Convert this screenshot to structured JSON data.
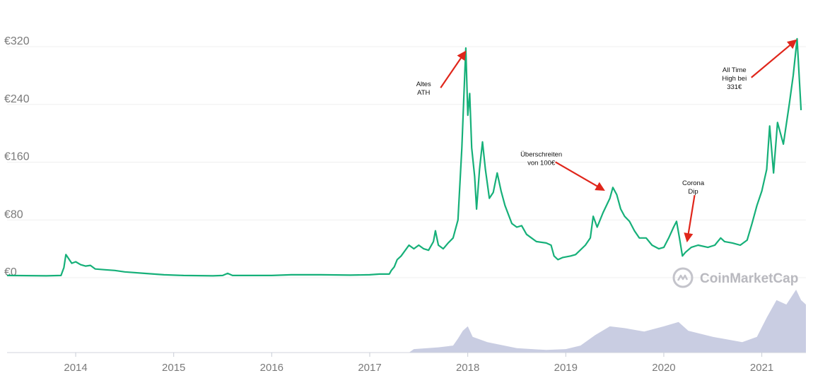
{
  "chart_data": {
    "type": "line",
    "title": "",
    "xlabel": "",
    "ylabel": "",
    "currency_prefix": "€",
    "ylim": [
      0,
      330
    ],
    "xlim": [
      2013.3,
      2021.45
    ],
    "grid": true,
    "y_ticks": [
      {
        "value": 0,
        "label": "€0"
      },
      {
        "value": 80,
        "label": "€80"
      },
      {
        "value": 160,
        "label": "€160"
      },
      {
        "value": 240,
        "label": "€240"
      },
      {
        "value": 320,
        "label": "€320"
      }
    ],
    "x_ticks": [
      {
        "value": 2014,
        "label": "2014"
      },
      {
        "value": 2015,
        "label": "2015"
      },
      {
        "value": 2016,
        "label": "2016"
      },
      {
        "value": 2017,
        "label": "2017"
      },
      {
        "value": 2018,
        "label": "2018"
      },
      {
        "value": 2019,
        "label": "2019"
      },
      {
        "value": 2020,
        "label": "2020"
      },
      {
        "value": 2021,
        "label": "2021"
      }
    ],
    "series": [
      {
        "color": "#16b079",
        "points": [
          [
            2013.3,
            3
          ],
          [
            2013.7,
            2.5
          ],
          [
            2013.85,
            3
          ],
          [
            2013.88,
            14
          ],
          [
            2013.9,
            32
          ],
          [
            2013.93,
            26
          ],
          [
            2013.96,
            20
          ],
          [
            2014.0,
            22
          ],
          [
            2014.05,
            18
          ],
          [
            2014.1,
            16
          ],
          [
            2014.15,
            17
          ],
          [
            2014.2,
            12
          ],
          [
            2014.3,
            11
          ],
          [
            2014.4,
            10
          ],
          [
            2014.5,
            8
          ],
          [
            2014.7,
            6
          ],
          [
            2014.9,
            4
          ],
          [
            2015.1,
            3
          ],
          [
            2015.4,
            2.5
          ],
          [
            2015.5,
            3
          ],
          [
            2015.55,
            6
          ],
          [
            2015.6,
            3
          ],
          [
            2015.8,
            3
          ],
          [
            2016.0,
            3
          ],
          [
            2016.2,
            4
          ],
          [
            2016.5,
            4
          ],
          [
            2016.8,
            3.5
          ],
          [
            2017.0,
            4
          ],
          [
            2017.1,
            5
          ],
          [
            2017.2,
            5
          ],
          [
            2017.22,
            10
          ],
          [
            2017.25,
            15
          ],
          [
            2017.28,
            25
          ],
          [
            2017.32,
            30
          ],
          [
            2017.4,
            45
          ],
          [
            2017.45,
            40
          ],
          [
            2017.5,
            45
          ],
          [
            2017.55,
            40
          ],
          [
            2017.6,
            38
          ],
          [
            2017.65,
            50
          ],
          [
            2017.67,
            65
          ],
          [
            2017.7,
            45
          ],
          [
            2017.75,
            40
          ],
          [
            2017.8,
            48
          ],
          [
            2017.85,
            55
          ],
          [
            2017.9,
            80
          ],
          [
            2017.94,
            180
          ],
          [
            2017.96,
            250
          ],
          [
            2017.98,
            318
          ],
          [
            2018.0,
            225
          ],
          [
            2018.02,
            255
          ],
          [
            2018.04,
            180
          ],
          [
            2018.07,
            140
          ],
          [
            2018.09,
            95
          ],
          [
            2018.12,
            150
          ],
          [
            2018.15,
            188
          ],
          [
            2018.18,
            150
          ],
          [
            2018.22,
            110
          ],
          [
            2018.26,
            118
          ],
          [
            2018.3,
            145
          ],
          [
            2018.34,
            120
          ],
          [
            2018.38,
            100
          ],
          [
            2018.45,
            75
          ],
          [
            2018.5,
            70
          ],
          [
            2018.55,
            72
          ],
          [
            2018.6,
            60
          ],
          [
            2018.65,
            55
          ],
          [
            2018.7,
            50
          ],
          [
            2018.8,
            48
          ],
          [
            2018.85,
            45
          ],
          [
            2018.88,
            30
          ],
          [
            2018.92,
            25
          ],
          [
            2018.97,
            28
          ],
          [
            2019.05,
            30
          ],
          [
            2019.1,
            32
          ],
          [
            2019.2,
            45
          ],
          [
            2019.25,
            55
          ],
          [
            2019.28,
            85
          ],
          [
            2019.32,
            70
          ],
          [
            2019.38,
            90
          ],
          [
            2019.45,
            110
          ],
          [
            2019.48,
            125
          ],
          [
            2019.52,
            115
          ],
          [
            2019.56,
            95
          ],
          [
            2019.6,
            85
          ],
          [
            2019.65,
            78
          ],
          [
            2019.7,
            65
          ],
          [
            2019.75,
            55
          ],
          [
            2019.82,
            55
          ],
          [
            2019.88,
            45
          ],
          [
            2019.95,
            40
          ],
          [
            2020.0,
            42
          ],
          [
            2020.05,
            55
          ],
          [
            2020.1,
            70
          ],
          [
            2020.13,
            78
          ],
          [
            2020.16,
            55
          ],
          [
            2020.19,
            30
          ],
          [
            2020.22,
            35
          ],
          [
            2020.28,
            42
          ],
          [
            2020.35,
            45
          ],
          [
            2020.45,
            42
          ],
          [
            2020.52,
            45
          ],
          [
            2020.58,
            55
          ],
          [
            2020.62,
            50
          ],
          [
            2020.7,
            48
          ],
          [
            2020.78,
            45
          ],
          [
            2020.85,
            52
          ],
          [
            2020.9,
            75
          ],
          [
            2020.95,
            100
          ],
          [
            2021.0,
            120
          ],
          [
            2021.05,
            150
          ],
          [
            2021.08,
            210
          ],
          [
            2021.12,
            145
          ],
          [
            2021.16,
            215
          ],
          [
            2021.22,
            185
          ],
          [
            2021.28,
            240
          ],
          [
            2021.32,
            280
          ],
          [
            2021.36,
            331
          ],
          [
            2021.4,
            232
          ]
        ]
      }
    ],
    "volume": {
      "color": "#c9cde2",
      "points": [
        [
          2013.3,
          0
        ],
        [
          2017.4,
          0
        ],
        [
          2017.45,
          4
        ],
        [
          2017.7,
          6
        ],
        [
          2017.85,
          8
        ],
        [
          2017.9,
          16
        ],
        [
          2017.95,
          25
        ],
        [
          2018.0,
          30
        ],
        [
          2018.05,
          18
        ],
        [
          2018.2,
          12
        ],
        [
          2018.5,
          5
        ],
        [
          2018.8,
          3
        ],
        [
          2019.0,
          4
        ],
        [
          2019.15,
          8
        ],
        [
          2019.3,
          20
        ],
        [
          2019.45,
          30
        ],
        [
          2019.6,
          28
        ],
        [
          2019.8,
          24
        ],
        [
          2020.0,
          30
        ],
        [
          2020.15,
          35
        ],
        [
          2020.25,
          25
        ],
        [
          2020.5,
          18
        ],
        [
          2020.8,
          12
        ],
        [
          2020.95,
          18
        ],
        [
          2021.05,
          40
        ],
        [
          2021.15,
          60
        ],
        [
          2021.25,
          55
        ],
        [
          2021.35,
          72
        ],
        [
          2021.4,
          60
        ],
        [
          2021.45,
          55
        ]
      ]
    },
    "annotations": [
      {
        "lines": [
          "Altes",
          "ATH"
        ],
        "x": 2017.55,
        "y": 265,
        "arrow_to": [
          2017.97,
          312
        ]
      },
      {
        "lines": [
          "Überschreiten",
          "von 100€"
        ],
        "x": 2018.75,
        "y": 168,
        "arrow_to": [
          2019.38,
          122
        ]
      },
      {
        "lines": [
          "Corona",
          "Dip"
        ],
        "x": 2020.3,
        "y": 128,
        "arrow_to": [
          2020.24,
          52
        ]
      },
      {
        "lines": [
          "All Time",
          "High bei",
          "331€"
        ],
        "x": 2020.72,
        "y": 285,
        "arrow_to": [
          2021.34,
          328
        ]
      }
    ],
    "watermark": "CoinMarketCap"
  }
}
